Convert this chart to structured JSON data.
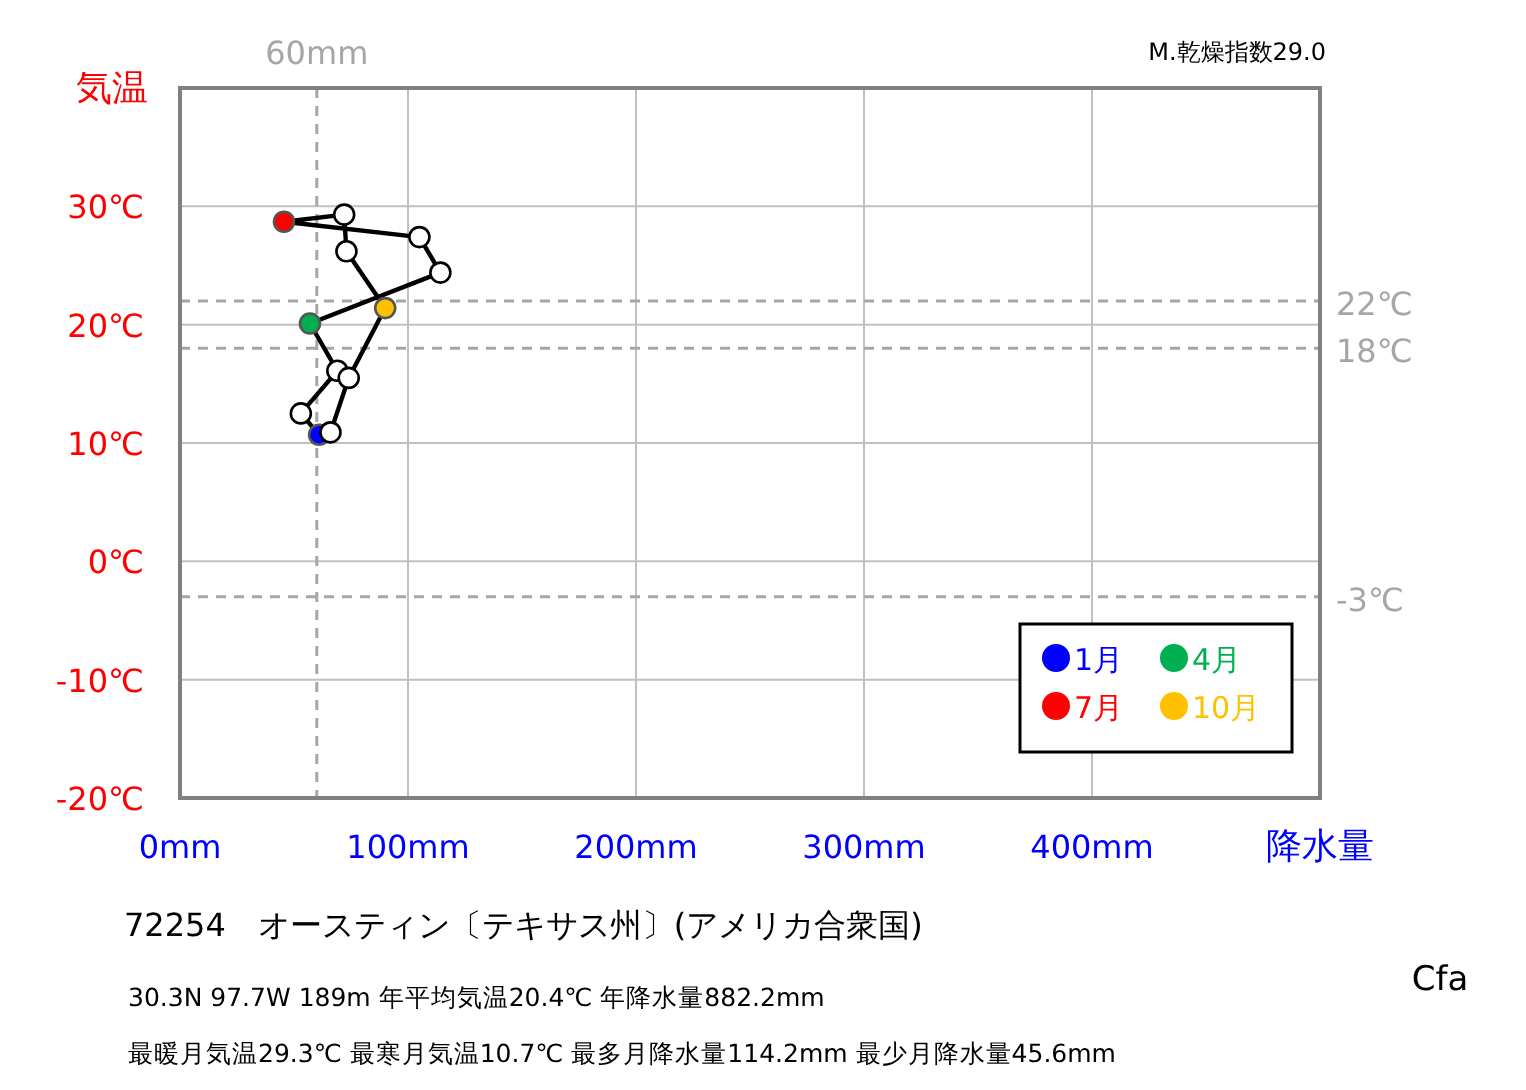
{
  "chart_data": {
    "type": "scatter",
    "title": "72254　オースティン〔テキサス州〕(アメリカ合衆国)",
    "xlabel": "降水量",
    "ylabel": "気温",
    "xlim": [
      0,
      500
    ],
    "ylim": [
      -20,
      40
    ],
    "xticks": [
      {
        "value": 0,
        "label": "0mm"
      },
      {
        "value": 100,
        "label": "100mm"
      },
      {
        "value": 200,
        "label": "200mm"
      },
      {
        "value": 300,
        "label": "300mm"
      },
      {
        "value": 400,
        "label": "400mm"
      },
      {
        "value": 500,
        "label": null
      }
    ],
    "yticks": [
      {
        "value": -20,
        "label": "-20℃"
      },
      {
        "value": -10,
        "label": "-10℃"
      },
      {
        "value": 0,
        "label": "0℃"
      },
      {
        "value": 10,
        "label": "10℃"
      },
      {
        "value": 20,
        "label": "20℃"
      },
      {
        "value": 30,
        "label": "30℃"
      },
      {
        "value": 40,
        "label": null
      }
    ],
    "grid": true,
    "legend": "bottom right",
    "marker": "circle",
    "series": [
      {
        "line_style": "solid",
        "color": "#000000",
        "x": [
          61,
          53,
          69,
          57,
          114.2,
          105,
          45.6,
          72,
          73,
          90,
          74,
          66
        ],
        "values": [
          10.7,
          12.5,
          16.1,
          20.1,
          24.4,
          27.4,
          28.7,
          29.3,
          26.2,
          21.4,
          15.5,
          10.9
        ],
        "colors": [
          "#0000ff",
          "#ffffff",
          "#ffffff",
          "#00b050",
          "#ffffff",
          "#ffffff",
          "#ff0000",
          "#ffffff",
          "#ffffff",
          "#ffc000",
          "#ffffff",
          "#ffffff"
        ]
      },
      {
        "name": "1月",
        "color": "#0000ff"
      },
      {
        "name": "4月",
        "color": "#00b050"
      },
      {
        "name": "7月",
        "color": "#ff0000"
      },
      {
        "name": "10月",
        "color": "#ffc000"
      }
    ],
    "ref_lines": [
      {
        "axis": "x",
        "value": 60,
        "label": "60mm",
        "color": "#a6a6a6",
        "line_style": "dashed"
      },
      {
        "axis": "y",
        "value": 22,
        "label": "22℃",
        "color": "#a6a6a6",
        "line_style": "dashed"
      },
      {
        "axis": "y",
        "value": 18,
        "label": "18℃",
        "color": "#a6a6a6",
        "line_style": "dashed"
      },
      {
        "axis": "y",
        "value": -3,
        "label": "-3℃",
        "color": "#a6a6a6",
        "line_style": "dashed"
      }
    ],
    "annotations": [
      "M.乾燥指数29.0",
      "Cfa",
      "30.3N  97.7W 189m  年平均気温20.4℃ 年降水量882.2mm",
      "最暖月気温29.3℃ 最寒月気温10.7℃ 最多月降水量114.2mm 最少月降水量45.6mm"
    ]
  }
}
